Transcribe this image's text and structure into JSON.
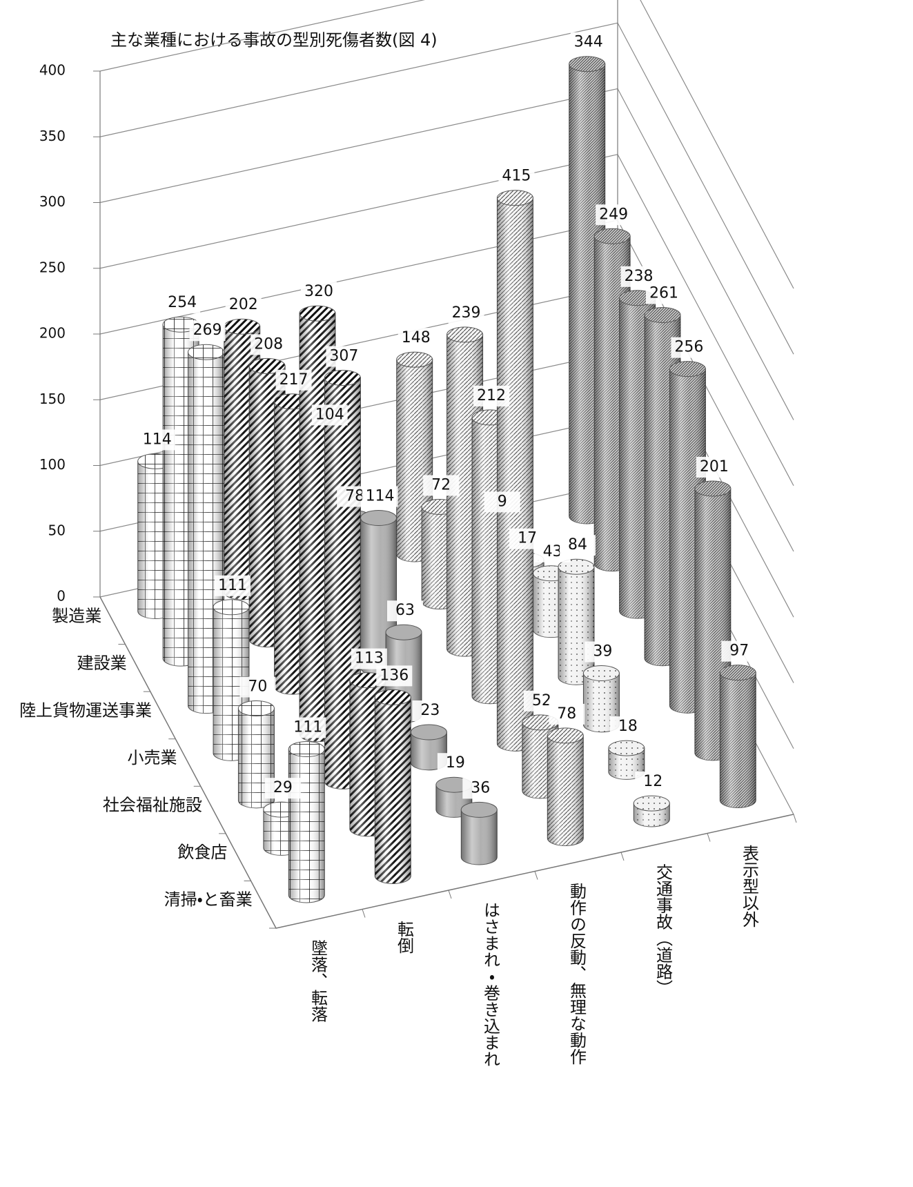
{
  "chart_data": {
    "type": "cylinder3d",
    "title": "主な業種における事故の型別死傷者数(図 4)",
    "categories": [
      "製造業",
      "建設業",
      "陸上貨物運送事業",
      "小売業",
      "社会福祉施設",
      "飲食店",
      "清掃・と畜業"
    ],
    "series": [
      {
        "name": "墜落、転落",
        "color": "#ffffff",
        "pattern": "grid",
        "values": [
          114,
          254,
          269,
          111,
          70,
          29,
          111
        ]
      },
      {
        "name": "転倒",
        "color": "#ffffff",
        "pattern": "stripe",
        "values": [
          202,
          208,
          217,
          320,
          307,
          113,
          136
        ]
      },
      {
        "name": "はさまれ・巻き込まれ",
        "color": "#b0b0b0",
        "pattern": "solid",
        "values": [
          104,
          78,
          114,
          63,
          23,
          19,
          36
        ]
      },
      {
        "name": "動作の反動、無理な動作",
        "color": "#f4f4f4",
        "pattern": "hatch",
        "values": [
          148,
          72,
          239,
          212,
          415,
          52,
          78
        ]
      },
      {
        "name": "交通事故（道路）",
        "color": "#f2f2f2",
        "pattern": "dots",
        "values": [
          9,
          17,
          43,
          84,
          39,
          18,
          12
        ]
      },
      {
        "name": "表示型以外",
        "color": "#c8c8c8",
        "pattern": "dense",
        "values": [
          344,
          249,
          238,
          261,
          256,
          201,
          97
        ]
      }
    ],
    "ylim": [
      0,
      400
    ],
    "yticks": [
      0,
      50,
      100,
      150,
      200,
      250,
      300,
      350,
      400
    ],
    "grid": true
  }
}
